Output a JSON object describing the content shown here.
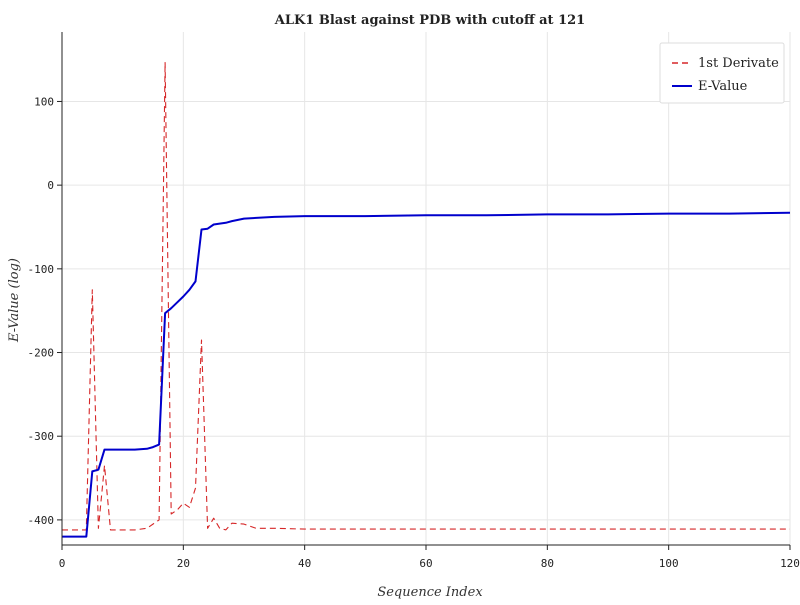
{
  "chart_data": {
    "type": "line",
    "title": "ALK1 Blast against PDB with cutoff at 121",
    "xlabel": "Sequence Index",
    "ylabel": "E-Value (log)",
    "xlim": [
      0,
      120
    ],
    "ylim": [
      -430,
      183
    ],
    "xticks": [
      "0",
      "20",
      "40",
      "60",
      "80",
      "100",
      "120"
    ],
    "yticks": [
      "-400",
      "-300",
      "-200",
      "-100",
      "0",
      "100"
    ],
    "grid": true,
    "legend_position": "top-right",
    "series": [
      {
        "name": "1st Derivate",
        "color": "#d62728",
        "style": "dashed",
        "x": [
          0,
          3,
          4,
          5,
          6,
          7,
          8,
          10,
          12,
          14,
          16,
          17,
          18,
          19,
          20,
          21,
          22,
          23,
          24,
          25,
          26,
          27,
          28,
          30,
          32,
          35,
          40,
          50,
          60,
          70,
          80,
          90,
          100,
          110,
          120
        ],
        "y": [
          -412,
          -412,
          -412,
          -125,
          -410,
          -335,
          -412,
          -412,
          -412,
          -410,
          -400,
          147,
          -393,
          -388,
          -380,
          -385,
          -362,
          -185,
          -410,
          -398,
          -410,
          -412,
          -404,
          -405,
          -410,
          -410,
          -411,
          -411,
          -411,
          -411,
          -411,
          -411,
          -411,
          -411,
          -411
        ]
      },
      {
        "name": "E-Value",
        "color": "#0000cc",
        "style": "solid",
        "x": [
          0,
          2,
          4,
          5,
          6,
          7,
          8,
          10,
          12,
          14,
          15,
          16,
          17,
          18,
          19,
          20,
          21,
          22,
          23,
          24,
          25,
          26,
          27,
          28,
          30,
          35,
          40,
          50,
          60,
          70,
          80,
          90,
          100,
          110,
          120
        ],
        "y": [
          -420,
          -420,
          -420,
          -342,
          -340,
          -316,
          -316,
          -316,
          -316,
          -315,
          -313,
          -310,
          -153,
          -147,
          -140,
          -133,
          -125,
          -115,
          -53,
          -52,
          -47,
          -46,
          -45,
          -43,
          -40,
          -38,
          -37,
          -37,
          -36,
          -36,
          -35,
          -35,
          -34,
          -34,
          -33
        ]
      }
    ]
  }
}
